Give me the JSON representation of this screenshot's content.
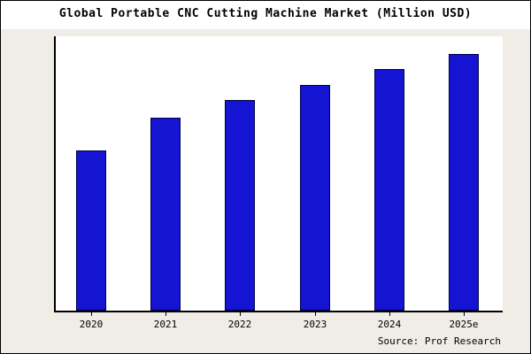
{
  "title": "Global Portable CNC Cutting Machine Market (Million USD)",
  "source": "Source: Prof Research",
  "chart_data": {
    "type": "bar",
    "title": "Global Portable CNC Cutting Machine Market (Million USD)",
    "categories": [
      "2020",
      "2021",
      "2022",
      "2023",
      "2024",
      "2025e"
    ],
    "values": [
      63,
      76,
      83,
      89,
      95,
      101
    ],
    "xlabel": "",
    "ylabel": "",
    "ylim": [
      0,
      108
    ],
    "grid": false,
    "legend": false,
    "bar_color": "#1414d2",
    "bar_border_color": "#00004d",
    "plot_background": "#ffffff",
    "figure_background": "#efede5"
  }
}
